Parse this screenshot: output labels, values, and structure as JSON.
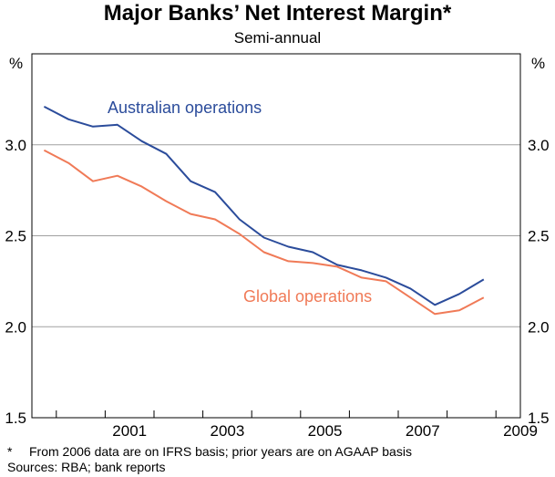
{
  "chart_data": {
    "type": "line",
    "title": "Major Banks’ Net Interest Margin*",
    "subtitle": "Semi-annual",
    "ylabel_left": "%",
    "ylabel_right": "%",
    "ylim": [
      1.5,
      3.5
    ],
    "yticks": [
      "1.5",
      "2.0",
      "2.5",
      "3.0"
    ],
    "xlim": [
      1999.5,
      2009.5
    ],
    "xticks": [
      "2001",
      "2003",
      "2005",
      "2007",
      "2009"
    ],
    "grid": true,
    "x": [
      1999.75,
      2000.25,
      2000.75,
      2001.25,
      2001.75,
      2002.25,
      2002.75,
      2003.25,
      2003.75,
      2004.25,
      2004.75,
      2005.25,
      2005.75,
      2006.25,
      2006.75,
      2007.25,
      2007.75,
      2008.25,
      2008.75
    ],
    "series": [
      {
        "name": "Australian operations",
        "color": "#2b4c9b",
        "values": [
          3.21,
          3.14,
          3.1,
          3.11,
          3.02,
          2.95,
          2.8,
          2.74,
          2.59,
          2.49,
          2.44,
          2.41,
          2.34,
          2.31,
          2.27,
          2.21,
          2.12,
          2.18,
          2.26
        ]
      },
      {
        "name": "Global operations",
        "color": "#f07a57",
        "values": [
          2.97,
          2.9,
          2.8,
          2.83,
          2.77,
          2.69,
          2.62,
          2.59,
          2.51,
          2.41,
          2.36,
          2.35,
          2.33,
          2.27,
          2.25,
          2.16,
          2.07,
          2.09,
          2.16
        ]
      }
    ]
  },
  "footnotes": {
    "star": "*",
    "basis": "From 2006 data are on IFRS basis; prior years are on AGAAP basis",
    "sources": "Sources: RBA; bank reports"
  }
}
